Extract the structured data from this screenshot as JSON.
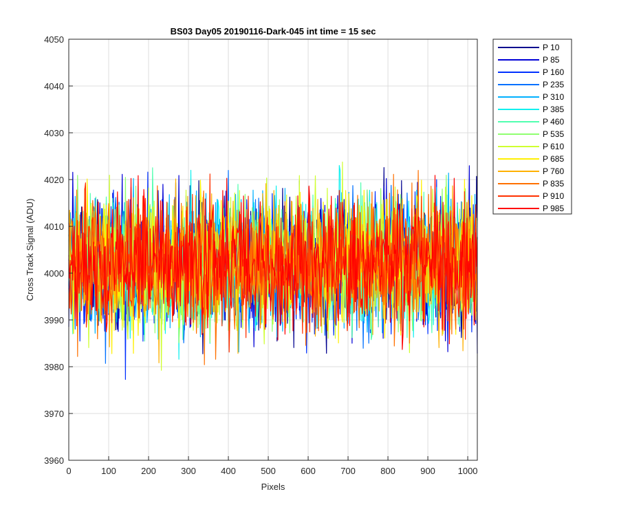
{
  "chart_data": {
    "type": "line",
    "title": "BS03 Day05 20190116-Dark-045 int time = 15 sec",
    "xlabel": "Pixels",
    "ylabel": "Cross Track Signal (ADU)",
    "xlim": [
      0,
      1024
    ],
    "ylim": [
      3960,
      4050
    ],
    "xticks": [
      0,
      100,
      200,
      300,
      400,
      500,
      600,
      700,
      800,
      900,
      1000
    ],
    "yticks": [
      3960,
      3970,
      3980,
      3990,
      4000,
      4010,
      4020,
      4030,
      4040,
      4050
    ],
    "grid": true,
    "legend_position": "outside-right",
    "series": [
      {
        "name": "P 10",
        "color": "#00008f",
        "mean": 4002,
        "spread": 7,
        "seed": 11
      },
      {
        "name": "P 85",
        "color": "#0000d6",
        "mean": 4002,
        "spread": 7,
        "seed": 23
      },
      {
        "name": "P 160",
        "color": "#0030ff",
        "mean": 4002,
        "spread": 7,
        "seed": 37
      },
      {
        "name": "P 235",
        "color": "#0070ff",
        "mean": 4002,
        "spread": 7,
        "seed": 41
      },
      {
        "name": "P 310",
        "color": "#00b0ff",
        "mean": 4002,
        "spread": 7,
        "seed": 53
      },
      {
        "name": "P 385",
        "color": "#10f0ef",
        "mean": 4002,
        "spread": 7,
        "seed": 67
      },
      {
        "name": "P 460",
        "color": "#50ffaf",
        "mean": 4002,
        "spread": 7,
        "seed": 71
      },
      {
        "name": "P 535",
        "color": "#8fff70",
        "mean": 4002,
        "spread": 7,
        "seed": 83
      },
      {
        "name": "P 610",
        "color": "#cfff30",
        "mean": 4002,
        "spread": 7,
        "seed": 97
      },
      {
        "name": "P 685",
        "color": "#ffef00",
        "mean": 4002,
        "spread": 7,
        "seed": 101
      },
      {
        "name": "P 760",
        "color": "#ffb000",
        "mean": 4002,
        "spread": 7,
        "seed": 113
      },
      {
        "name": "P 835",
        "color": "#ff7000",
        "mean": 4002,
        "spread": 7,
        "seed": 127
      },
      {
        "name": "P 910",
        "color": "#ff3000",
        "mean": 4002,
        "spread": 7,
        "seed": 131
      },
      {
        "name": "P 985",
        "color": "#ff0000",
        "mean": 4002,
        "spread": 7,
        "seed": 139
      }
    ]
  }
}
